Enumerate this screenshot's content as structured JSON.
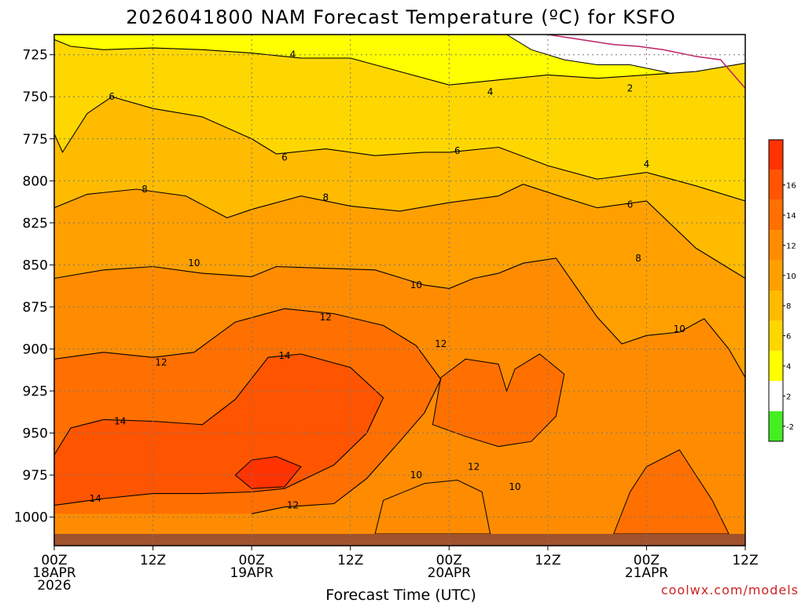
{
  "chart_data": {
    "type": "heatmap",
    "title": "2026041800 NAM Forecast Temperature (ºC) for KSFO",
    "xlabel": "Forecast Time (UTC)",
    "ylabel": "",
    "credit": "coolwx.com/models",
    "x_ticks": [
      {
        "hours": 0,
        "line1": "00Z",
        "line2": "18APR",
        "line3": "2026"
      },
      {
        "hours": 12,
        "line1": "12Z",
        "line2": "",
        "line3": ""
      },
      {
        "hours": 24,
        "line1": "00Z",
        "line2": "19APR",
        "line3": ""
      },
      {
        "hours": 36,
        "line1": "12Z",
        "line2": "",
        "line3": ""
      },
      {
        "hours": 48,
        "line1": "00Z",
        "line2": "20APR",
        "line3": ""
      },
      {
        "hours": 60,
        "line1": "12Z",
        "line2": "",
        "line3": ""
      },
      {
        "hours": 72,
        "line1": "00Z",
        "line2": "21APR",
        "line3": ""
      },
      {
        "hours": 84,
        "line1": "12Z",
        "line2": "",
        "line3": ""
      }
    ],
    "xlim": [
      0,
      84
    ],
    "y_ticks": [
      725,
      750,
      775,
      800,
      825,
      850,
      875,
      900,
      925,
      950,
      975,
      1000
    ],
    "ylim": [
      1017,
      713
    ],
    "y_unit": "hPa",
    "surface_pressure": 1010,
    "levels": [
      -2,
      2,
      4,
      6,
      8,
      10,
      12,
      14,
      16
    ],
    "colorbar": [
      {
        "label": "-2",
        "color": "#44ee22"
      },
      {
        "label": "2",
        "color": "#ffffff"
      },
      {
        "label": "4",
        "color": "#ffff00"
      },
      {
        "label": "6",
        "color": "#ffd700"
      },
      {
        "label": "8",
        "color": "#ffbb00"
      },
      {
        "label": "10",
        "color": "#ffa000"
      },
      {
        "label": "12",
        "color": "#ff8c00"
      },
      {
        "label": "14",
        "color": "#ff7000"
      },
      {
        "label": "16",
        "color": "#ff5500"
      },
      {
        "label": "",
        "color": "#ff3300"
      }
    ],
    "colors": {
      "ground": "#a0522d",
      "freezing_line": "#bb2266",
      "contour": "#000000",
      "grid": "#777777"
    },
    "isotherms": [
      {
        "value": 4,
        "points": [
          [
            0,
            716
          ],
          [
            2,
            720
          ],
          [
            6,
            722
          ],
          [
            12,
            721
          ],
          [
            18,
            722
          ],
          [
            24,
            724
          ],
          [
            30,
            727
          ],
          [
            36,
            727
          ],
          [
            42,
            735
          ],
          [
            48,
            743
          ],
          [
            54,
            740
          ],
          [
            60,
            737
          ],
          [
            66,
            739
          ],
          [
            72,
            737
          ],
          [
            78,
            735
          ],
          [
            84,
            730
          ]
        ]
      },
      {
        "value": 6,
        "points": [
          [
            0,
            772
          ],
          [
            1,
            783
          ],
          [
            4,
            760
          ],
          [
            7,
            750
          ],
          [
            12,
            757
          ],
          [
            18,
            762
          ],
          [
            24,
            775
          ],
          [
            27,
            784
          ],
          [
            33,
            781
          ],
          [
            39,
            785
          ],
          [
            45,
            783
          ],
          [
            48,
            783
          ],
          [
            54,
            780
          ],
          [
            60,
            791
          ],
          [
            66,
            799
          ],
          [
            72,
            795
          ],
          [
            78,
            803
          ],
          [
            84,
            812
          ]
        ]
      },
      {
        "value": 8,
        "points": [
          [
            0,
            816
          ],
          [
            4,
            808
          ],
          [
            10,
            805
          ],
          [
            16,
            809
          ],
          [
            21,
            822
          ],
          [
            24,
            817
          ],
          [
            30,
            809
          ],
          [
            36,
            815
          ],
          [
            42,
            818
          ],
          [
            48,
            813
          ],
          [
            54,
            809
          ],
          [
            57,
            802
          ],
          [
            62,
            810
          ],
          [
            66,
            816
          ],
          [
            72,
            812
          ],
          [
            78,
            840
          ],
          [
            84,
            858
          ]
        ]
      },
      {
        "value": 10,
        "points": [
          [
            0,
            858
          ],
          [
            6,
            853
          ],
          [
            12,
            851
          ],
          [
            18,
            855
          ],
          [
            24,
            857
          ],
          [
            27,
            851
          ],
          [
            33,
            852
          ],
          [
            39,
            853
          ],
          [
            45,
            862
          ],
          [
            48,
            864
          ],
          [
            51,
            858
          ],
          [
            54,
            855
          ],
          [
            57,
            849
          ],
          [
            61,
            846
          ],
          [
            66,
            881
          ],
          [
            69,
            897
          ],
          [
            72,
            892
          ],
          [
            76,
            890
          ],
          [
            79,
            882
          ],
          [
            82,
            900
          ],
          [
            84,
            917
          ]
        ]
      },
      {
        "value": 12,
        "points": [
          [
            0,
            906
          ],
          [
            6,
            902
          ],
          [
            12,
            905
          ],
          [
            17,
            902
          ],
          [
            22,
            884
          ],
          [
            28,
            876
          ],
          [
            34,
            879
          ],
          [
            40,
            886
          ],
          [
            44,
            898
          ],
          [
            47,
            918
          ],
          [
            45,
            938
          ],
          [
            42,
            955
          ],
          [
            38,
            977
          ],
          [
            34,
            992
          ],
          [
            28,
            994
          ],
          [
            24,
            998
          ]
        ]
      },
      {
        "value": 14,
        "points": [
          [
            0,
            963
          ],
          [
            2,
            947
          ],
          [
            6,
            942
          ],
          [
            12,
            943
          ],
          [
            18,
            945
          ],
          [
            22,
            930
          ],
          [
            26,
            905
          ],
          [
            30,
            903
          ],
          [
            36,
            911
          ],
          [
            40,
            929
          ],
          [
            38,
            950
          ],
          [
            34,
            969
          ],
          [
            28,
            983
          ],
          [
            24,
            985
          ],
          [
            18,
            986
          ],
          [
            12,
            986
          ],
          [
            6,
            989
          ],
          [
            0,
            993
          ]
        ]
      }
    ],
    "contour_labels": [
      {
        "text": "4",
        "hours": 29,
        "hpa": 725
      },
      {
        "text": "4",
        "hours": 53,
        "hpa": 747
      },
      {
        "text": "4",
        "hours": 72,
        "hpa": 790
      },
      {
        "text": "2",
        "hours": 70,
        "hpa": 745
      },
      {
        "text": "6",
        "hours": 7,
        "hpa": 750
      },
      {
        "text": "6",
        "hours": 28,
        "hpa": 786
      },
      {
        "text": "6",
        "hours": 49,
        "hpa": 782
      },
      {
        "text": "6",
        "hours": 70,
        "hpa": 814
      },
      {
        "text": "8",
        "hours": 11,
        "hpa": 805
      },
      {
        "text": "8",
        "hours": 33,
        "hpa": 810
      },
      {
        "text": "8",
        "hours": 71,
        "hpa": 846
      },
      {
        "text": "10",
        "hours": 17,
        "hpa": 849
      },
      {
        "text": "10",
        "hours": 44,
        "hpa": 862
      },
      {
        "text": "10",
        "hours": 44,
        "hpa": 975
      },
      {
        "text": "10",
        "hours": 56,
        "hpa": 982
      },
      {
        "text": "10",
        "hours": 76,
        "hpa": 888
      },
      {
        "text": "12",
        "hours": 33,
        "hpa": 881
      },
      {
        "text": "12",
        "hours": 13,
        "hpa": 908
      },
      {
        "text": "12",
        "hours": 47,
        "hpa": 897
      },
      {
        "text": "12",
        "hours": 51,
        "hpa": 970
      },
      {
        "text": "12",
        "hours": 29,
        "hpa": 993
      },
      {
        "text": "14",
        "hours": 28,
        "hpa": 904
      },
      {
        "text": "14",
        "hours": 8,
        "hpa": 943
      },
      {
        "text": "14",
        "hours": 5,
        "hpa": 989
      }
    ]
  }
}
